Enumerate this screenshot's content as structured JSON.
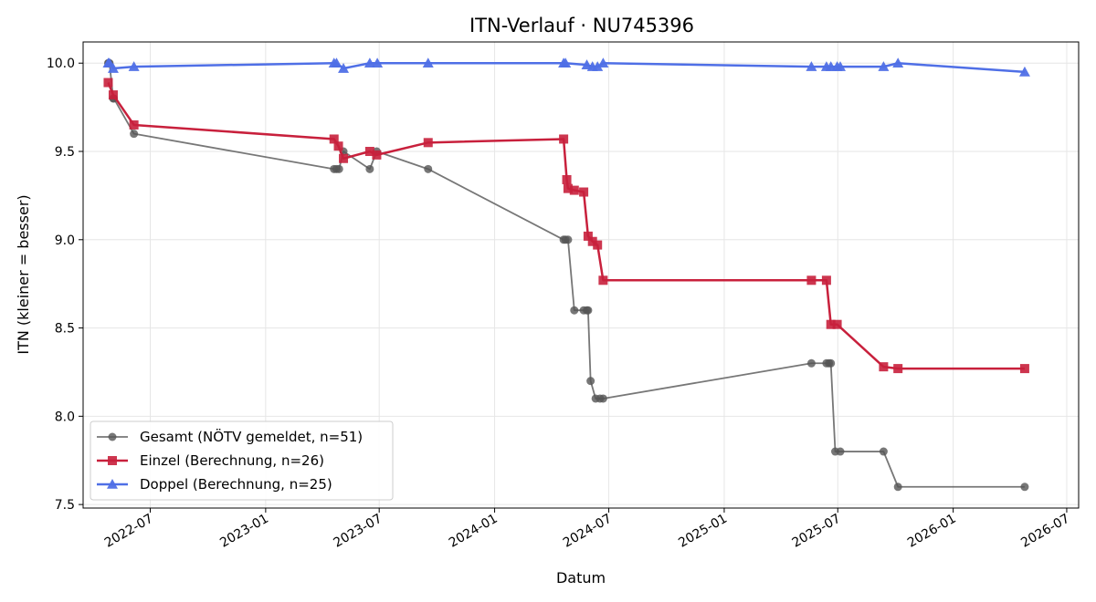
{
  "chart_data": {
    "type": "line",
    "title": "ITN-Verlauf · NU745396",
    "xlabel": "Datum",
    "ylabel": "ITN  (kleiner = besser)",
    "x_ticks": [
      "2022-07",
      "2023-01",
      "2023-07",
      "2024-01",
      "2024-07",
      "2025-01",
      "2025-07",
      "2026-01",
      "2026-07"
    ],
    "y_ticks": [
      "7.5",
      "8.0",
      "8.5",
      "9.0",
      "9.5",
      "10.0"
    ],
    "xlim": [
      "2022-03-16",
      "2026-07-20"
    ],
    "ylim": [
      7.48,
      10.12
    ],
    "grid": true,
    "legend_position": "lower-left",
    "series": [
      {
        "name": "Gesamt (NÖTV gemeldet, n=51)",
        "color": "#555555",
        "marker": "circle",
        "points": [
          [
            "2022-04-25",
            10.0
          ],
          [
            "2022-04-26",
            10.0
          ],
          [
            "2022-04-27",
            10.0
          ],
          [
            "2022-05-03",
            9.8
          ],
          [
            "2022-05-04",
            9.8
          ],
          [
            "2022-06-05",
            9.6
          ],
          [
            "2023-04-20",
            9.4
          ],
          [
            "2023-04-24",
            9.4
          ],
          [
            "2023-04-28",
            9.4
          ],
          [
            "2023-05-05",
            9.5
          ],
          [
            "2023-06-16",
            9.4
          ],
          [
            "2023-06-27",
            9.5
          ],
          [
            "2023-09-17",
            9.4
          ],
          [
            "2024-04-20",
            9.0
          ],
          [
            "2024-04-23",
            9.0
          ],
          [
            "2024-04-27",
            9.0
          ],
          [
            "2024-05-07",
            8.6
          ],
          [
            "2024-05-22",
            8.6
          ],
          [
            "2024-05-27",
            8.6
          ],
          [
            "2024-05-29",
            8.6
          ],
          [
            "2024-06-02",
            8.2
          ],
          [
            "2024-06-10",
            8.1
          ],
          [
            "2024-06-17",
            8.1
          ],
          [
            "2024-06-22",
            8.1
          ],
          [
            "2025-05-20",
            8.3
          ],
          [
            "2025-06-13",
            8.3
          ],
          [
            "2025-06-17",
            8.3
          ],
          [
            "2025-06-20",
            8.3
          ],
          [
            "2025-06-27",
            7.8
          ],
          [
            "2025-07-05",
            7.8
          ],
          [
            "2025-09-12",
            7.8
          ],
          [
            "2025-10-05",
            7.6
          ],
          [
            "2026-04-25",
            7.6
          ]
        ]
      },
      {
        "name": "Einzel (Berechnung, n=26)",
        "color": "#c8203c",
        "marker": "square",
        "points": [
          [
            "2022-04-25",
            9.89
          ],
          [
            "2022-05-03",
            9.82
          ],
          [
            "2022-06-05",
            9.65
          ],
          [
            "2023-04-20",
            9.57
          ],
          [
            "2023-04-27",
            9.53
          ],
          [
            "2023-05-05",
            9.46
          ],
          [
            "2023-06-16",
            9.5
          ],
          [
            "2023-06-27",
            9.48
          ],
          [
            "2023-09-17",
            9.55
          ],
          [
            "2024-04-20",
            9.57
          ],
          [
            "2024-04-25",
            9.34
          ],
          [
            "2024-04-27",
            9.29
          ],
          [
            "2024-05-07",
            9.28
          ],
          [
            "2024-05-22",
            9.27
          ],
          [
            "2024-05-29",
            9.02
          ],
          [
            "2024-06-05",
            8.99
          ],
          [
            "2024-06-13",
            8.97
          ],
          [
            "2024-06-22",
            8.77
          ],
          [
            "2025-05-20",
            8.77
          ],
          [
            "2025-06-13",
            8.77
          ],
          [
            "2025-06-20",
            8.52
          ],
          [
            "2025-06-30",
            8.52
          ],
          [
            "2025-09-12",
            8.28
          ],
          [
            "2025-10-05",
            8.27
          ],
          [
            "2026-04-25",
            8.27
          ]
        ]
      },
      {
        "name": "Doppel (Berechnung, n=25)",
        "color": "#4f6fe6",
        "marker": "triangle",
        "points": [
          [
            "2022-04-25",
            10.0
          ],
          [
            "2022-04-27",
            10.0
          ],
          [
            "2022-05-03",
            9.97
          ],
          [
            "2022-06-05",
            9.98
          ],
          [
            "2023-04-20",
            10.0
          ],
          [
            "2023-04-24",
            10.0
          ],
          [
            "2023-05-05",
            9.97
          ],
          [
            "2023-06-16",
            10.0
          ],
          [
            "2023-06-28",
            10.0
          ],
          [
            "2023-09-17",
            10.0
          ],
          [
            "2024-04-20",
            10.0
          ],
          [
            "2024-04-23",
            10.0
          ],
          [
            "2024-05-27",
            9.99
          ],
          [
            "2024-06-05",
            9.98
          ],
          [
            "2024-06-13",
            9.98
          ],
          [
            "2024-06-22",
            10.0
          ],
          [
            "2025-05-20",
            9.98
          ],
          [
            "2025-06-13",
            9.98
          ],
          [
            "2025-06-20",
            9.98
          ],
          [
            "2025-06-30",
            9.98
          ],
          [
            "2025-07-05",
            9.98
          ],
          [
            "2025-09-12",
            9.98
          ],
          [
            "2025-10-05",
            10.0
          ],
          [
            "2026-04-25",
            9.95
          ]
        ]
      }
    ]
  }
}
